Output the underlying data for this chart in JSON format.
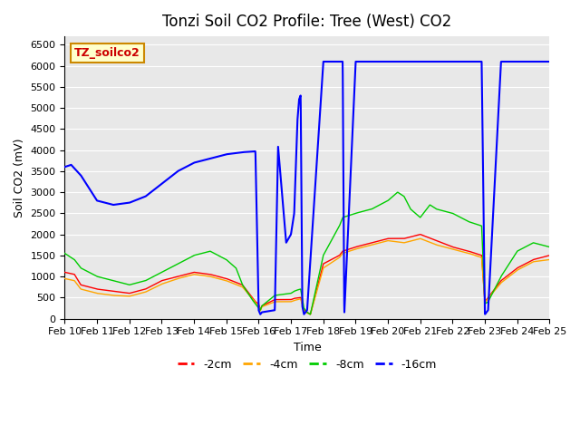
{
  "title": "Tonzi Soil CO2 Profile: Tree (West) CO2",
  "xlabel": "Time",
  "ylabel": "Soil CO2 (mV)",
  "legend_label": "TZ_soilco2",
  "series_labels": [
    "-2cm",
    "-4cm",
    "-8cm",
    "-16cm"
  ],
  "series_colors": [
    "#ff0000",
    "#ffa500",
    "#00cc00",
    "#0000ff"
  ],
  "xlim_days": [
    0,
    15
  ],
  "ylim": [
    0,
    6500
  ],
  "yticks": [
    0,
    500,
    1000,
    1500,
    2000,
    2500,
    3000,
    3500,
    4000,
    4500,
    5000,
    5500,
    6000,
    6500
  ],
  "xtick_labels": [
    "Feb 10",
    "Feb 11",
    "Feb 12",
    "Feb 13",
    "Feb 14",
    "Feb 15",
    "Feb 16",
    "Feb 17",
    "Feb 18",
    "Feb 19",
    "Feb 20",
    "Feb 21",
    "Feb 22",
    "Feb 23",
    "Feb 24",
    "Feb 25"
  ],
  "background_color": "#e8e8e8",
  "plot_bg_color": "#e8e8e8",
  "title_fontsize": 12,
  "axis_fontsize": 9,
  "tick_fontsize": 8,
  "legend_box_color": "#ffffcc",
  "legend_box_edge": "#cc8800"
}
